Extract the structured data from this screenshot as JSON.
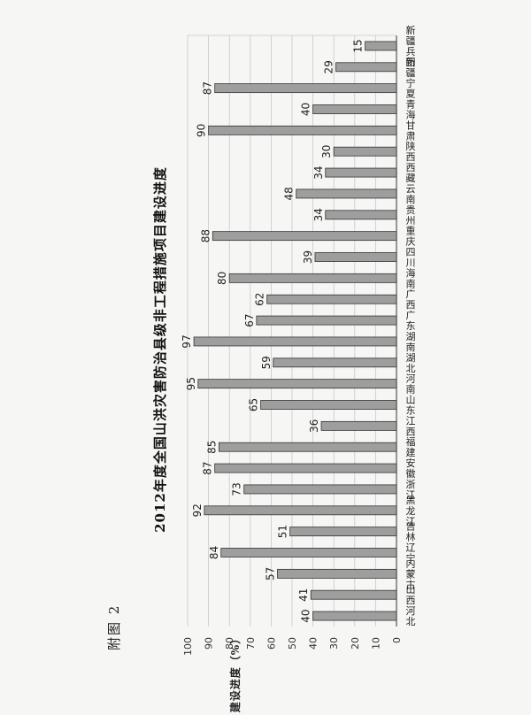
{
  "figure_label": "附图 2",
  "chart_data": {
    "type": "bar",
    "title": "2012年度全国山洪灾害防治县级非工程措施项目建设进度",
    "ylabel": "建设进度（%）",
    "xlabel": "",
    "ylim": [
      0,
      100
    ],
    "yticks": [
      0,
      10,
      20,
      30,
      40,
      50,
      60,
      70,
      80,
      90,
      100
    ],
    "grid": true,
    "orientation": "rotated-90-ccw",
    "bar_color": "#9e9e9e",
    "categories": [
      "河北",
      "山西",
      "内蒙古",
      "辽宁",
      "吉林",
      "黑龙江",
      "浙江",
      "安徽",
      "福建",
      "江西",
      "山东",
      "河南",
      "湖北",
      "湖南",
      "广东",
      "广西",
      "海南",
      "四川",
      "重庆",
      "贵州",
      "云南",
      "西藏",
      "陕西",
      "甘肃",
      "青海",
      "宁夏",
      "新疆",
      "新疆兵团"
    ],
    "values": [
      40,
      41,
      57,
      84,
      51,
      92,
      73,
      87,
      85,
      36,
      65,
      95,
      59,
      97,
      67,
      62,
      80,
      39,
      88,
      34,
      48,
      34,
      30,
      90,
      40,
      87,
      29,
      15
    ]
  }
}
